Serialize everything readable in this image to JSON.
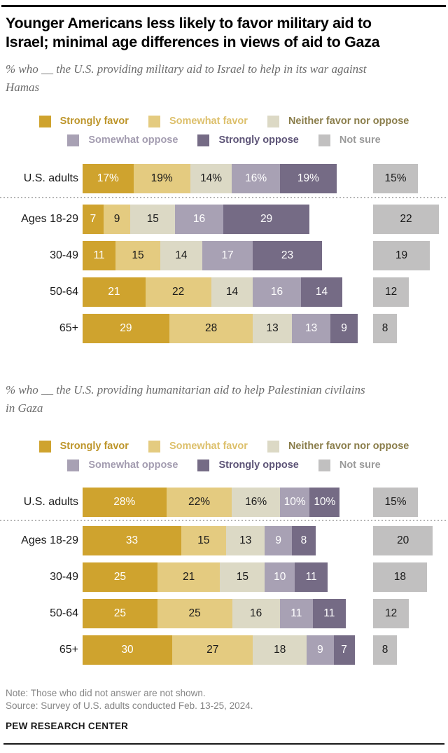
{
  "header": {
    "title": "Younger Americans less likely to favor military aid to\nIsrael; minimal age differences in views of aid to Gaza"
  },
  "legend": {
    "items": [
      {
        "label": "Strongly favor",
        "color": "#cfa32e",
        "label_color": "#bd952a"
      },
      {
        "label": "Somewhat favor",
        "color": "#e4cb80",
        "label_color": "#ddc06c"
      },
      {
        "label": "Neither favor nor oppose",
        "color": "#dcd9c5",
        "label_color": "#8a7d4a"
      },
      {
        "label": "Somewhat oppose",
        "color": "#a8a1b4",
        "label_color": "#a39cb0"
      },
      {
        "label": "Strongly oppose",
        "color": "#756b85",
        "label_color": "#5d5477"
      },
      {
        "label": "Not sure",
        "color": "#c1c0c0",
        "label_color": "#9b9b9b"
      }
    ]
  },
  "colors": {
    "segment_fills": [
      "#cfa32e",
      "#e4cb80",
      "#dcd9c5",
      "#a8a1b4",
      "#756b85"
    ],
    "segment_text": [
      "#ffffff",
      "#1a1a1a",
      "#1a1a1a",
      "#ffffff",
      "#ffffff"
    ],
    "not_sure_fill": "#c1c0c0",
    "not_sure_text": "#1a1a1a"
  },
  "chart_data": [
    {
      "type": "bar",
      "stacked": true,
      "subtitle": "% who __ the U.S. providing military aid to Israel to help in its war against\nHamas",
      "series_names": [
        "Strongly favor",
        "Somewhat favor",
        "Neither favor nor oppose",
        "Somewhat oppose",
        "Strongly oppose",
        "Not sure"
      ],
      "categories": [
        "U.S. adults",
        "Ages 18-29",
        "30-49",
        "50-64",
        "65+"
      ],
      "rows": [
        {
          "label": "U.S. adults",
          "values": [
            17,
            19,
            14,
            16,
            19
          ],
          "not_sure": 15,
          "percent_labels": true
        },
        {
          "label": "Ages 18-29",
          "values": [
            7,
            9,
            15,
            16,
            29
          ],
          "not_sure": 22,
          "percent_labels": false
        },
        {
          "label": "30-49",
          "values": [
            11,
            15,
            14,
            17,
            23
          ],
          "not_sure": 19,
          "percent_labels": false
        },
        {
          "label": "50-64",
          "values": [
            21,
            22,
            14,
            16,
            14
          ],
          "not_sure": 12,
          "percent_labels": false
        },
        {
          "label": "65+",
          "values": [
            29,
            28,
            13,
            13,
            9
          ],
          "not_sure": 8,
          "percent_labels": false
        }
      ]
    },
    {
      "type": "bar",
      "stacked": true,
      "subtitle": "% who __ the U.S. providing humanitarian aid to help Palestinian civilains\nin Gaza",
      "series_names": [
        "Strongly favor",
        "Somewhat favor",
        "Neither favor nor oppose",
        "Somewhat oppose",
        "Strongly oppose",
        "Not sure"
      ],
      "categories": [
        "U.S. adults",
        "Ages 18-29",
        "30-49",
        "50-64",
        "65+"
      ],
      "rows": [
        {
          "label": "U.S. adults",
          "values": [
            28,
            22,
            16,
            10,
            10
          ],
          "not_sure": 15,
          "percent_labels": true
        },
        {
          "label": "Ages 18-29",
          "values": [
            33,
            15,
            13,
            9,
            8
          ],
          "not_sure": 20,
          "percent_labels": false
        },
        {
          "label": "30-49",
          "values": [
            25,
            21,
            15,
            10,
            11
          ],
          "not_sure": 18,
          "percent_labels": false
        },
        {
          "label": "50-64",
          "values": [
            25,
            25,
            16,
            11,
            11
          ],
          "not_sure": 12,
          "percent_labels": false
        },
        {
          "label": "65+",
          "values": [
            30,
            27,
            18,
            9,
            7
          ],
          "not_sure": 8,
          "percent_labels": false
        }
      ]
    }
  ],
  "footer": {
    "note": "Note: Those who did not answer are not shown.",
    "source": "Source: Survey of U.S. adults conducted Feb. 13-25, 2024.",
    "brand": "PEW RESEARCH CENTER"
  }
}
